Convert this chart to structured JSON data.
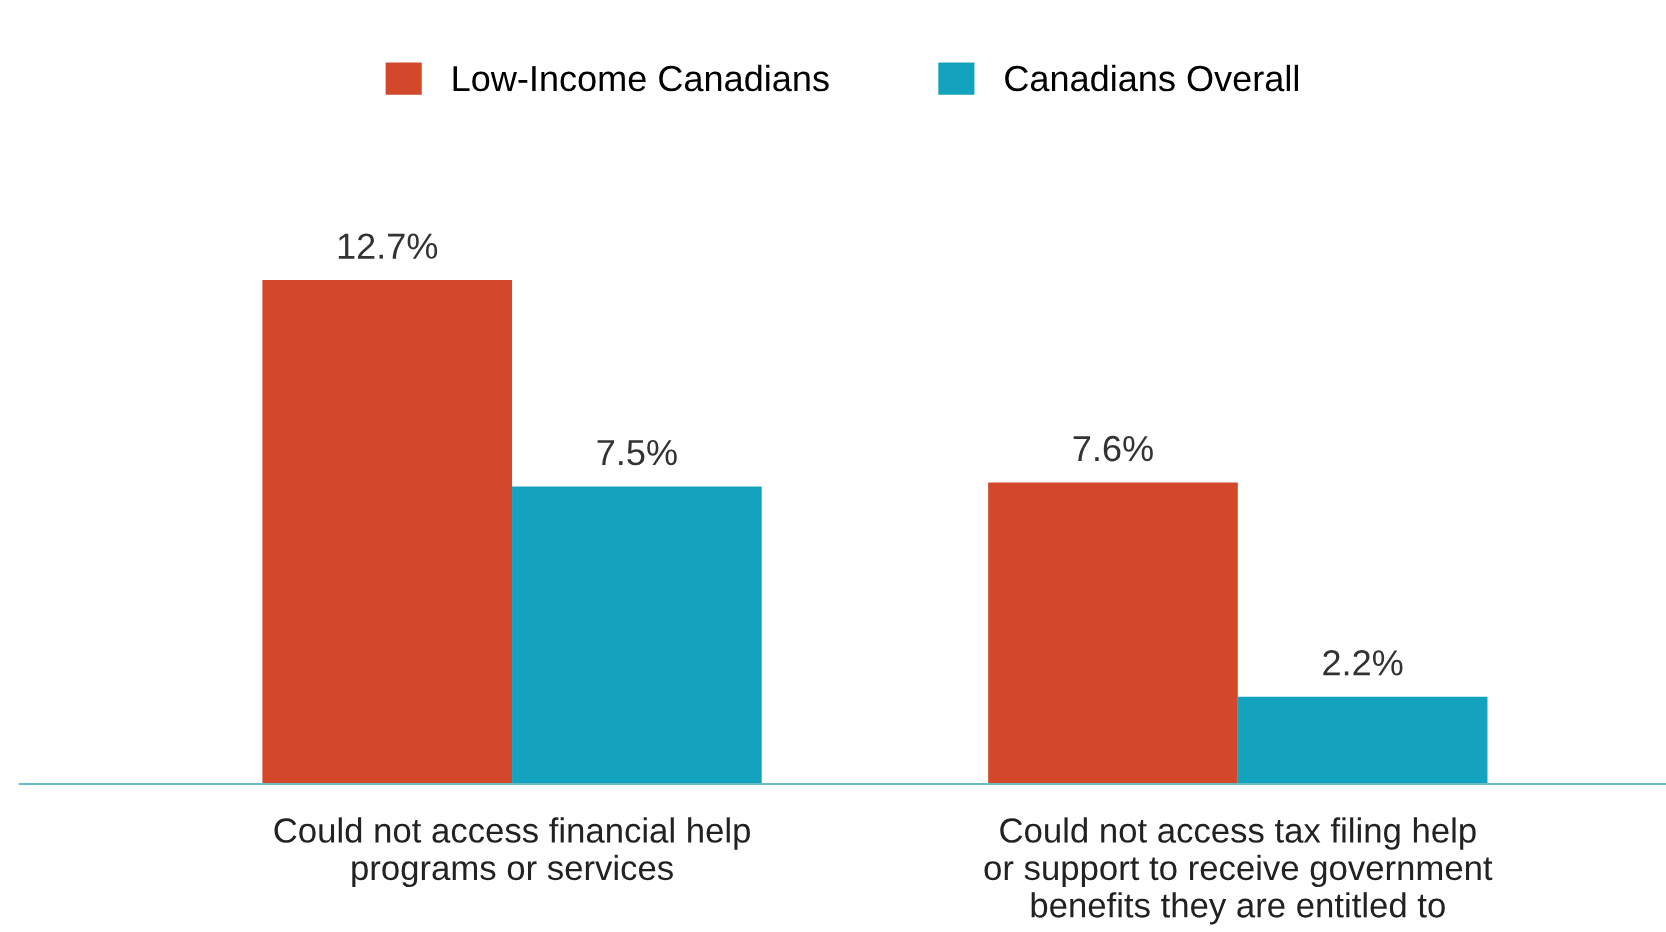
{
  "chart_data": {
    "type": "bar",
    "categories": [
      "Could not access financial help\nprograms or services",
      "Could not access tax filing help\nor support to receive government\nbenefits they are entitled to"
    ],
    "series": [
      {
        "name": "Low-Income Canadians",
        "color": "#d3472b",
        "values": [
          12.7,
          7.6
        ],
        "value_labels": [
          "12.7%",
          "7.6%"
        ]
      },
      {
        "name": "Canadians Overall",
        "color": "#14a3bf",
        "values": [
          7.5,
          2.2
        ],
        "value_labels": [
          "7.5%",
          "2.2%"
        ]
      }
    ],
    "tick_labels": "x",
    "legend": "top",
    "grid": false
  }
}
